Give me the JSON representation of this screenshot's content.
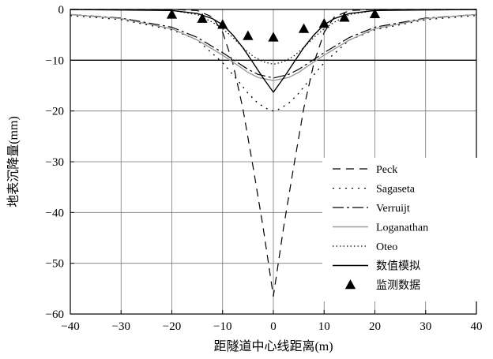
{
  "chart_data": {
    "type": "line",
    "title": "",
    "xlabel": "距隧道中心线距离(m)",
    "ylabel": "地表沉降量(mm)",
    "xlim": [
      -40,
      40
    ],
    "ylim": [
      -60,
      0
    ],
    "xticks": [
      -40,
      -30,
      -20,
      -10,
      0,
      10,
      20,
      30,
      40
    ],
    "yticks": [
      0,
      -10,
      -20,
      -30,
      -40,
      -50,
      -60
    ],
    "x_tick_labels": [
      "−40",
      "−30",
      "−20",
      "−10",
      "0",
      "10",
      "20",
      "30",
      "40"
    ],
    "y_tick_labels": [
      "0",
      "−10",
      "−20",
      "−30",
      "−40",
      "−50",
      "−60"
    ],
    "grid": true,
    "legend_position": "lower-right",
    "series": [
      {
        "name": "Peck",
        "style": "dashed",
        "color": "#000000",
        "x": [
          -40,
          -30,
          -20,
          -15,
          -12,
          -10,
          -8,
          -6,
          -4,
          -2,
          0,
          2,
          4,
          6,
          8,
          10,
          12,
          15,
          20,
          30,
          40
        ],
        "y": [
          0,
          0,
          0,
          -0.2,
          -1.5,
          -4.5,
          -10.5,
          -19.5,
          -31,
          -43,
          -56.5,
          -43,
          -31,
          -19.5,
          -10.5,
          -4.5,
          -1.5,
          -0.2,
          0,
          0,
          0
        ]
      },
      {
        "name": "Sagaseta",
        "style": "dotted",
        "color": "#000000",
        "x": [
          -40,
          -30,
          -20,
          -15,
          -10,
          -7,
          -5,
          -3,
          -1,
          0,
          1,
          3,
          5,
          7,
          10,
          15,
          20,
          30,
          40
        ],
        "y": [
          -1.2,
          -2,
          -4,
          -6,
          -10.5,
          -14,
          -16.5,
          -18.5,
          -19.7,
          -20,
          -19.7,
          -18.5,
          -16.5,
          -14,
          -10.5,
          -6,
          -4,
          -2,
          -1.2
        ]
      },
      {
        "name": "Verruijt",
        "style": "dashdot",
        "color": "#000000",
        "x": [
          -40,
          -30,
          -20,
          -15,
          -10,
          -7,
          -5,
          -3,
          0,
          3,
          5,
          7,
          10,
          15,
          20,
          30,
          40
        ],
        "y": [
          -1,
          -1.7,
          -3.5,
          -5.5,
          -8.5,
          -10.5,
          -11.8,
          -12.8,
          -13.5,
          -12.8,
          -11.8,
          -10.5,
          -8.5,
          -5.5,
          -3.5,
          -1.7,
          -1
        ]
      },
      {
        "name": "Loganathan",
        "style": "solid",
        "color": "#999999",
        "x": [
          -40,
          -30,
          -20,
          -15,
          -10,
          -7,
          -5,
          -3,
          0,
          3,
          5,
          7,
          10,
          15,
          20,
          30,
          40
        ],
        "y": [
          -1,
          -1.8,
          -3.8,
          -6,
          -9,
          -11,
          -12.4,
          -13.4,
          -14,
          -13.4,
          -12.4,
          -11,
          -9,
          -6,
          -3.8,
          -1.8,
          -1
        ]
      },
      {
        "name": "Oteo",
        "style": "dotted-fine",
        "color": "#000000",
        "x": [
          -40,
          -30,
          -20,
          -15,
          -12,
          -10,
          -8,
          -6,
          -4,
          -2,
          0,
          2,
          4,
          6,
          8,
          10,
          12,
          15,
          20,
          30,
          40
        ],
        "y": [
          0,
          0,
          -0.2,
          -1,
          -2.5,
          -3.8,
          -5.5,
          -7.5,
          -9.2,
          -10.3,
          -10.8,
          -10.3,
          -9.2,
          -7.5,
          -5.5,
          -3.8,
          -2.5,
          -1,
          -0.2,
          0,
          0
        ]
      },
      {
        "name": "数值模拟",
        "style": "solid",
        "color": "#000000",
        "x": [
          -40,
          -20,
          -15,
          -12,
          -10,
          -8,
          -6,
          -4,
          -2,
          0,
          2,
          4,
          6,
          8,
          10,
          12,
          15,
          20,
          40
        ],
        "y": [
          0,
          -0.2,
          -0.8,
          -1.8,
          -3,
          -5,
          -7.5,
          -10.5,
          -13.5,
          -16.3,
          -13.5,
          -10.5,
          -7.5,
          -5,
          -3,
          -1.8,
          -0.8,
          -0.2,
          0
        ]
      },
      {
        "name": "监测数据",
        "style": "marker-triangle",
        "color": "#000000",
        "x": [
          -20,
          -14,
          -10,
          -5,
          0,
          6,
          10,
          14,
          20
        ],
        "y": [
          -1,
          -1.8,
          -3,
          -5.2,
          -5.5,
          -3.8,
          -2.8,
          -1.6,
          -0.9
        ]
      }
    ]
  }
}
